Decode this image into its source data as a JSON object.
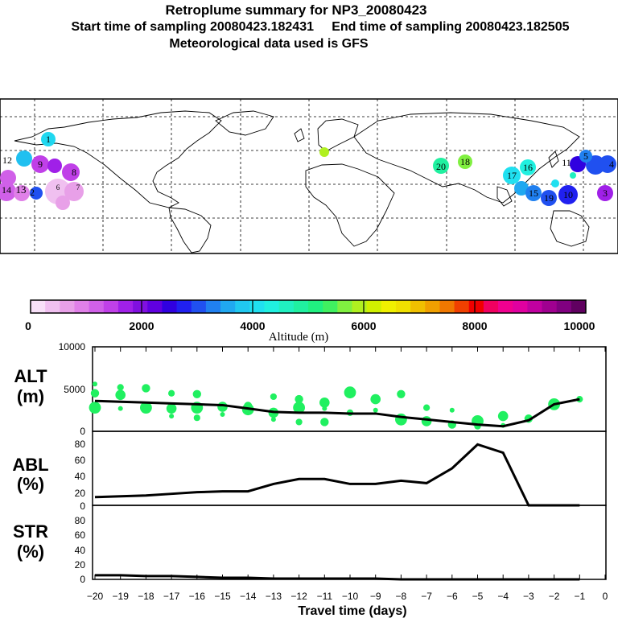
{
  "header": {
    "title": "Retroplume summary for NP3_20080423",
    "start_label": "Start time of sampling 20080423.182431",
    "end_label": "End time of sampling 20080423.182505",
    "met_label": "Meteorological data used is GFS"
  },
  "colorbar": {
    "label": "Altitude (m)",
    "ticks": [
      "0",
      "2000",
      "4000",
      "6000",
      "8000",
      "10000"
    ],
    "colors": [
      "#f8e0f8",
      "#f0c0f0",
      "#e8a0e8",
      "#e080e8",
      "#d060e8",
      "#c040e8",
      "#a020e8",
      "#8010e0",
      "#6000e0",
      "#3000e0",
      "#2020f0",
      "#2050f0",
      "#2080f0",
      "#20a8f0",
      "#20c8f0",
      "#20e0f0",
      "#20f0e0",
      "#20f0c0",
      "#20f0a0",
      "#20f080",
      "#40f060",
      "#80f040",
      "#b0f020",
      "#d0f000",
      "#f0f000",
      "#f0e000",
      "#f0c000",
      "#f0a000",
      "#f07800",
      "#f04000",
      "#f00000",
      "#f00060",
      "#f00090",
      "#e000a0",
      "#c000a0",
      "#a00090",
      "#800080",
      "#600060"
    ]
  },
  "map": {
    "labels": [
      "1",
      "12",
      "13",
      "9",
      "8",
      "14",
      "2",
      "6",
      "7",
      "20",
      "18",
      "17",
      "16",
      "15",
      "11",
      "19",
      "10",
      "5",
      "3",
      "4"
    ]
  },
  "panels": {
    "alt": {
      "label1": "ALT",
      "label2": "(m)",
      "ticks": [
        "10000",
        "5000",
        "0"
      ]
    },
    "abl": {
      "label1": "ABL",
      "label2": "(%)",
      "ticks": [
        "80",
        "60",
        "40",
        "20",
        "0"
      ]
    },
    "str": {
      "label1": "STR",
      "label2": "(%)",
      "ticks": [
        "80",
        "60",
        "40",
        "20",
        "0"
      ]
    }
  },
  "xaxis": {
    "label": "Travel time (days)",
    "ticks": [
      "−20",
      "−19",
      "−18",
      "−17",
      "−16",
      "−15",
      "−14",
      "−13",
      "−12",
      "−11",
      "−10",
      "−9",
      "−8",
      "−7",
      "−6",
      "−5",
      "−4",
      "−3",
      "−2",
      "−1",
      "0"
    ]
  },
  "chart_data": [
    {
      "type": "line",
      "title": "ALT",
      "ylabel": "Altitude (m)",
      "xlabel": "Travel time (days)",
      "ylim": [
        0,
        10000
      ],
      "x": [
        -20,
        -19,
        -18,
        -17,
        -16,
        -15,
        -14,
        -13,
        -12,
        -11,
        -10,
        -9,
        -8,
        -7,
        -6,
        -5,
        -4,
        -3,
        -2,
        -1
      ],
      "values": [
        3600,
        3500,
        3400,
        3300,
        3200,
        3100,
        2700,
        2300,
        2200,
        2200,
        2100,
        2100,
        1700,
        1400,
        1100,
        800,
        600,
        1300,
        3200,
        3800
      ],
      "scatter": [
        [
          -20,
          5600
        ],
        [
          -20,
          4500
        ],
        [
          -20,
          2800
        ],
        [
          -19,
          5200
        ],
        [
          -19,
          4300
        ],
        [
          -19,
          2700
        ],
        [
          -18,
          5100
        ],
        [
          -18,
          2800
        ],
        [
          -17,
          4500
        ],
        [
          -17,
          2700
        ],
        [
          -17,
          1800
        ],
        [
          -16,
          4400
        ],
        [
          -16,
          2800
        ],
        [
          -16,
          1600
        ],
        [
          -15,
          2900
        ],
        [
          -15,
          2000
        ],
        [
          -14,
          3000
        ],
        [
          -14,
          2600
        ],
        [
          -13,
          4100
        ],
        [
          -13,
          2200
        ],
        [
          -13,
          1400
        ],
        [
          -12,
          3800
        ],
        [
          -12,
          2800
        ],
        [
          -12,
          1100
        ],
        [
          -11,
          3400
        ],
        [
          -11,
          2700
        ],
        [
          -11,
          1100
        ],
        [
          -10,
          4600
        ],
        [
          -10,
          2200
        ],
        [
          -9,
          3800
        ],
        [
          -9,
          2500
        ],
        [
          -8,
          4400
        ],
        [
          -8,
          1400
        ],
        [
          -7,
          2800
        ],
        [
          -7,
          1200
        ],
        [
          -6,
          2500
        ],
        [
          -6,
          800
        ],
        [
          -5,
          1200
        ],
        [
          -5,
          600
        ],
        [
          -4,
          1800
        ],
        [
          -4,
          700
        ],
        [
          -3,
          1500
        ],
        [
          -2,
          3200
        ],
        [
          -1,
          3800
        ]
      ]
    },
    {
      "type": "line",
      "title": "ABL",
      "ylabel": "ABL (%)",
      "xlabel": "Travel time (days)",
      "ylim": [
        0,
        90
      ],
      "x": [
        -20,
        -19,
        -18,
        -17,
        -16,
        -15,
        -14,
        -13,
        -12,
        -11,
        -10,
        -9,
        -8,
        -7,
        -6,
        -5,
        -4,
        -3,
        -2,
        -1
      ],
      "values": [
        10,
        11,
        12,
        14,
        16,
        17,
        17,
        26,
        32,
        32,
        26,
        26,
        30,
        27,
        45,
        74,
        64,
        0,
        0,
        0
      ]
    },
    {
      "type": "line",
      "title": "STR",
      "ylabel": "STR (%)",
      "xlabel": "Travel time (days)",
      "ylim": [
        0,
        90
      ],
      "x": [
        -20,
        -19,
        -18,
        -17,
        -16,
        -15,
        -14,
        -13,
        -12,
        -11,
        -10,
        -9,
        -8,
        -7,
        -6,
        -5,
        -4,
        -3,
        -2,
        -1
      ],
      "values": [
        5,
        5,
        4,
        4,
        3,
        2,
        2,
        1,
        1,
        1,
        1,
        1,
        0,
        0,
        0,
        0,
        0,
        0,
        0,
        0
      ]
    }
  ]
}
